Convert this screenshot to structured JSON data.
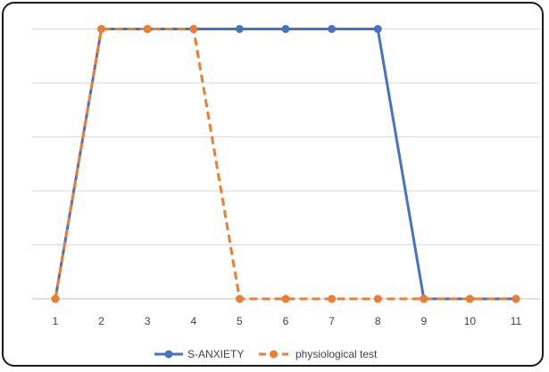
{
  "chart_data": {
    "type": "line",
    "title": "",
    "xlabel": "",
    "ylabel": "",
    "x": [
      1,
      2,
      3,
      4,
      5,
      6,
      7,
      8,
      9,
      10,
      11
    ],
    "ylim": [
      0,
      5
    ],
    "y_gridlines": [
      0,
      1,
      2,
      3,
      4,
      5
    ],
    "grid": true,
    "legend_position": "bottom",
    "series": [
      {
        "name": "S-ANXIETY",
        "values": [
          0,
          5,
          5,
          5,
          5,
          5,
          5,
          5,
          0,
          0,
          0
        ],
        "color": "#4472C4",
        "style": "solid",
        "marker": "circle"
      },
      {
        "name": "physiological test",
        "values": [
          0,
          5,
          5,
          5,
          0,
          0,
          0,
          0,
          0,
          0,
          0
        ],
        "color": "#ED7D31",
        "style": "dashed",
        "marker": "circle"
      }
    ]
  }
}
